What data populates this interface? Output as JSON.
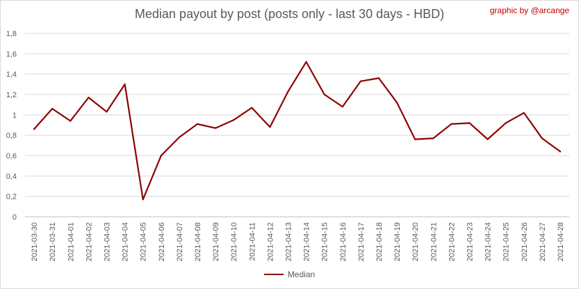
{
  "title": "Median payout by post (posts only - last 30 days - HBD)",
  "credit": "graphic by @arcange",
  "chart_data": {
    "type": "line",
    "title": "Median payout by post (posts only - last 30 days - HBD)",
    "xlabel": "",
    "ylabel": "",
    "ylim": [
      0,
      1.8
    ],
    "yticks": [
      "0",
      "0,2",
      "0,4",
      "0,6",
      "0,8",
      "1",
      "1,2",
      "1,4",
      "1,6",
      "1,8"
    ],
    "grid": true,
    "legend_position": "bottom",
    "categories": [
      "2021-03-30",
      "2021-03-31",
      "2021-04-01",
      "2021-04-02",
      "2021-04-03",
      "2021-04-04",
      "2021-04-05",
      "2021-04-06",
      "2021-04-07",
      "2021-04-08",
      "2021-04-09",
      "2021-04-10",
      "2021-04-11",
      "2021-04-12",
      "2021-04-13",
      "2021-04-14",
      "2021-04-15",
      "2021-04-16",
      "2021-04-17",
      "2021-04-18",
      "2021-04-19",
      "2021-04-20",
      "2021-04-21",
      "2021-04-22",
      "2021-04-23",
      "2021-04-24",
      "2021-04-25",
      "2021-04-26",
      "2021-04-27",
      "2021-04-28"
    ],
    "series": [
      {
        "name": "Median",
        "color": "#8b0000",
        "values": [
          0.86,
          1.06,
          0.94,
          1.17,
          1.03,
          1.3,
          0.17,
          0.6,
          0.78,
          0.91,
          0.87,
          0.95,
          1.07,
          0.88,
          1.23,
          1.52,
          1.2,
          1.08,
          1.33,
          1.36,
          1.12,
          0.76,
          0.77,
          0.91,
          0.92,
          0.76,
          0.92,
          1.02,
          0.77,
          0.64
        ]
      }
    ]
  }
}
